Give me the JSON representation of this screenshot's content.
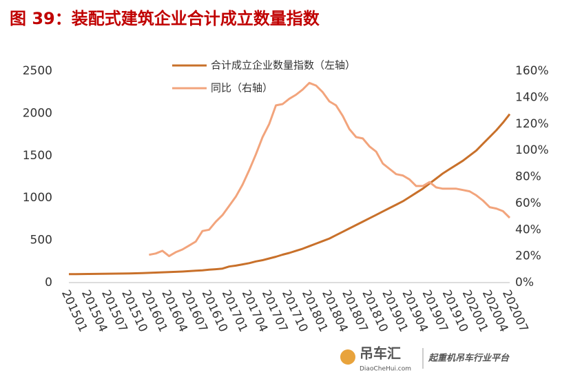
{
  "chart_data": {
    "type": "line",
    "title": "图 39：装配式建筑企业合计成立数量指数",
    "categories": [
      "201501",
      null,
      null,
      "201504",
      null,
      null,
      "201507",
      null,
      null,
      "201510",
      null,
      null,
      "201601",
      null,
      null,
      "201604",
      null,
      null,
      "201607",
      null,
      null,
      "201610",
      null,
      null,
      "201701",
      null,
      null,
      "201704",
      null,
      null,
      "201707",
      null,
      null,
      "201710",
      null,
      null,
      "201801",
      null,
      null,
      "201804",
      null,
      null,
      "201807",
      null,
      null,
      "201810",
      null,
      null,
      "201901",
      null,
      null,
      "201904",
      null,
      null,
      "201907",
      null,
      null,
      "201910",
      null,
      null,
      "202001",
      null,
      null,
      "202004",
      null,
      null,
      "202007"
    ],
    "series": [
      {
        "name": "合计成立企业数量指数（左轴）",
        "color": "#c8702a",
        "values": [
          100,
          100,
          101,
          102,
          103,
          104,
          105,
          106,
          107,
          108,
          110,
          112,
          115,
          118,
          121,
          124,
          127,
          130,
          135,
          140,
          145,
          152,
          158,
          165,
          190,
          200,
          215,
          230,
          250,
          265,
          285,
          305,
          330,
          350,
          375,
          400,
          430,
          460,
          490,
          520,
          560,
          600,
          640,
          680,
          720,
          760,
          800,
          840,
          880,
          920,
          960,
          1010,
          1060,
          1110,
          1170,
          1230,
          1290,
          1340,
          1390,
          1440,
          1500,
          1560,
          1640,
          1720,
          1800,
          1890,
          1990
        ]
      },
      {
        "name": "同比（右轴）",
        "color": "#f2a47c",
        "axis": "y2",
        "values": [
          null,
          null,
          null,
          null,
          null,
          null,
          null,
          null,
          null,
          null,
          null,
          null,
          21,
          22,
          24,
          20,
          23,
          25,
          28,
          31,
          39,
          40,
          46,
          51,
          58,
          65,
          74,
          85,
          97,
          110,
          120,
          134,
          135,
          139,
          142,
          146,
          151,
          149,
          144,
          137,
          134,
          126,
          116,
          110,
          109,
          103,
          99,
          90,
          86,
          82,
          81,
          78,
          73,
          73,
          76,
          72,
          71,
          71,
          71,
          70,
          69,
          66,
          62,
          57,
          56,
          54,
          49
        ]
      }
    ],
    "ylim": [
      0,
      2500
    ],
    "yticks": [
      0,
      500,
      1000,
      1500,
      2000,
      2500
    ],
    "y2lim": [
      0,
      160
    ],
    "y2ticks": [
      {
        "value": 0,
        "label": "0%"
      },
      {
        "value": 20,
        "label": "20%"
      },
      {
        "value": 40,
        "label": "40%"
      },
      {
        "value": 60,
        "label": "60%"
      },
      {
        "value": 80,
        "label": "80%"
      },
      {
        "value": 100,
        "label": "100%"
      },
      {
        "value": 120,
        "label": "120%"
      },
      {
        "value": 140,
        "label": "140%"
      },
      {
        "value": 160,
        "label": "160%"
      }
    ],
    "grid": false,
    "legend": "top"
  },
  "watermark": {
    "name": "吊车汇",
    "url": "DiaoCheHui.com",
    "slogan": "起重机吊车行业平台"
  }
}
